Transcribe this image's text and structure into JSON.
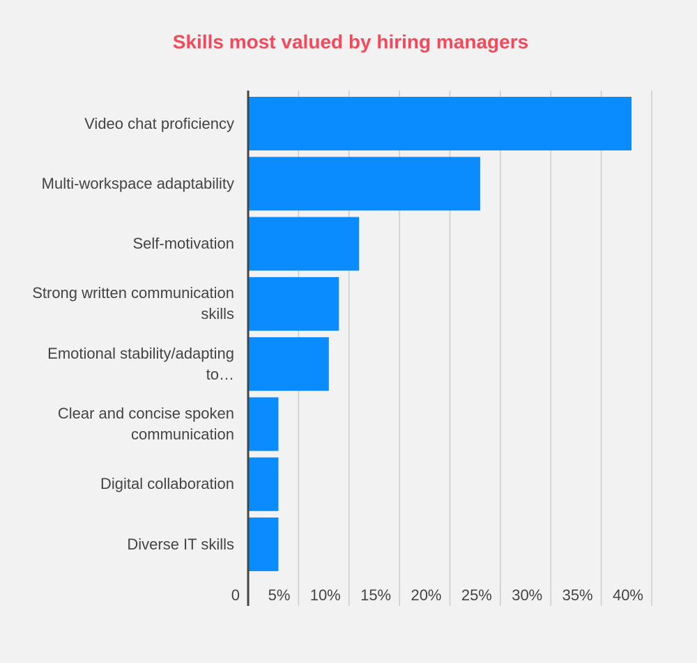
{
  "chart_data": {
    "type": "bar",
    "orientation": "horizontal",
    "title": "Skills most valued by hiring managers",
    "categories": [
      "Video chat proficiency",
      "Multi-workspace adaptability",
      "Self-motivation",
      "Strong written communication skills",
      "Emotional stability/adapting to…",
      "Clear and concise spoken communication",
      "Digital collaboration",
      "Diverse IT skills"
    ],
    "values": [
      38,
      23,
      11,
      9,
      8,
      3,
      3,
      3
    ],
    "color": "#0a8cff",
    "xlim": [
      0,
      40
    ],
    "xticks": [
      0,
      {
        "value": 5,
        "label": "5%"
      },
      {
        "value": 10,
        "label": "10%"
      },
      {
        "value": 15,
        "label": "15%"
      },
      {
        "value": 20,
        "label": "20%"
      },
      {
        "value": 25,
        "label": "25%"
      },
      {
        "value": 30,
        "label": "30%"
      },
      {
        "value": 35,
        "label": "35%"
      },
      {
        "value": 40,
        "label": "40%"
      }
    ],
    "grid": true
  }
}
